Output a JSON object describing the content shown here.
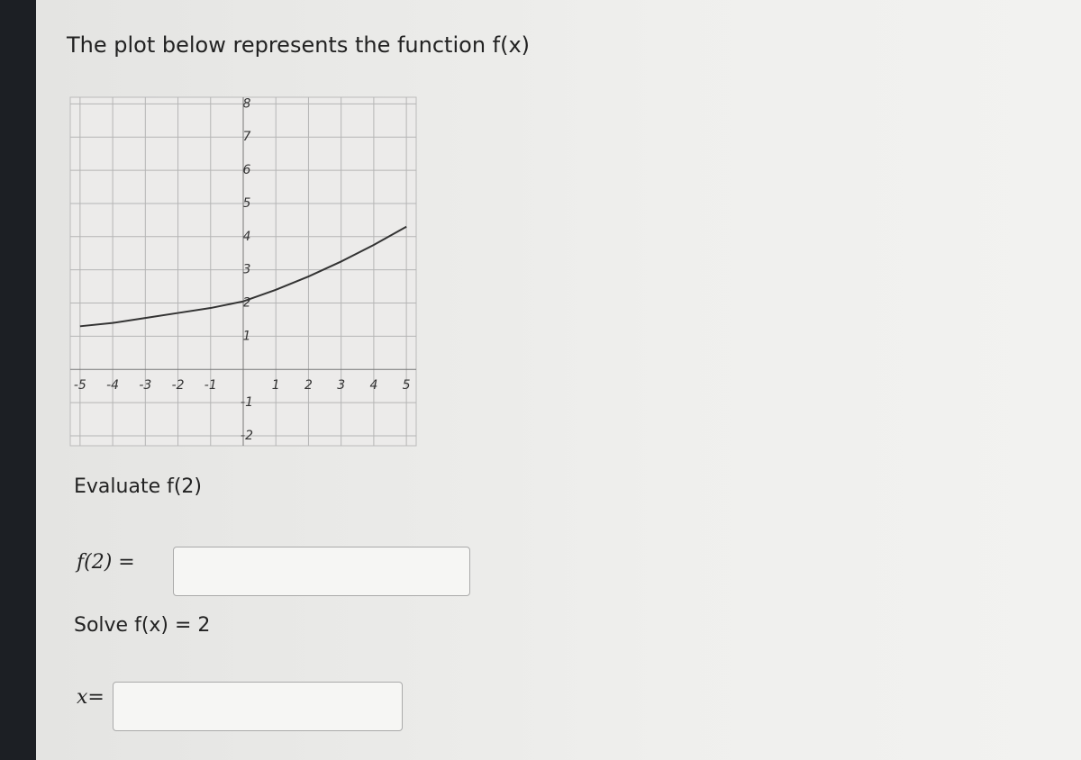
{
  "title": "The plot below represents the function f(x)",
  "chart_data": {
    "type": "line",
    "x": [
      -5,
      -4,
      -3,
      -2,
      -1,
      0,
      1,
      2,
      3,
      4,
      5
    ],
    "series": [
      {
        "color": "#333333",
        "values": [
          1.3,
          1.4,
          1.55,
          1.7,
          1.85,
          2.05,
          2.4,
          2.8,
          3.25,
          3.75,
          4.3
        ]
      }
    ],
    "xlim": [
      -5.3,
      5.3
    ],
    "ylim": [
      -2.3,
      8.2
    ],
    "xticks": [
      -5,
      -4,
      -3,
      -2,
      -1,
      1,
      2,
      3,
      4,
      5
    ],
    "yticks": [
      8,
      7,
      6,
      5,
      4,
      3,
      2,
      1,
      -1,
      -2
    ],
    "grid": true
  },
  "questions": [
    {
      "prompt": "Evaluate f(2)",
      "input_label": "f(2) ="
    },
    {
      "prompt": "Solve f(x) = 2",
      "input_label": "x="
    }
  ]
}
